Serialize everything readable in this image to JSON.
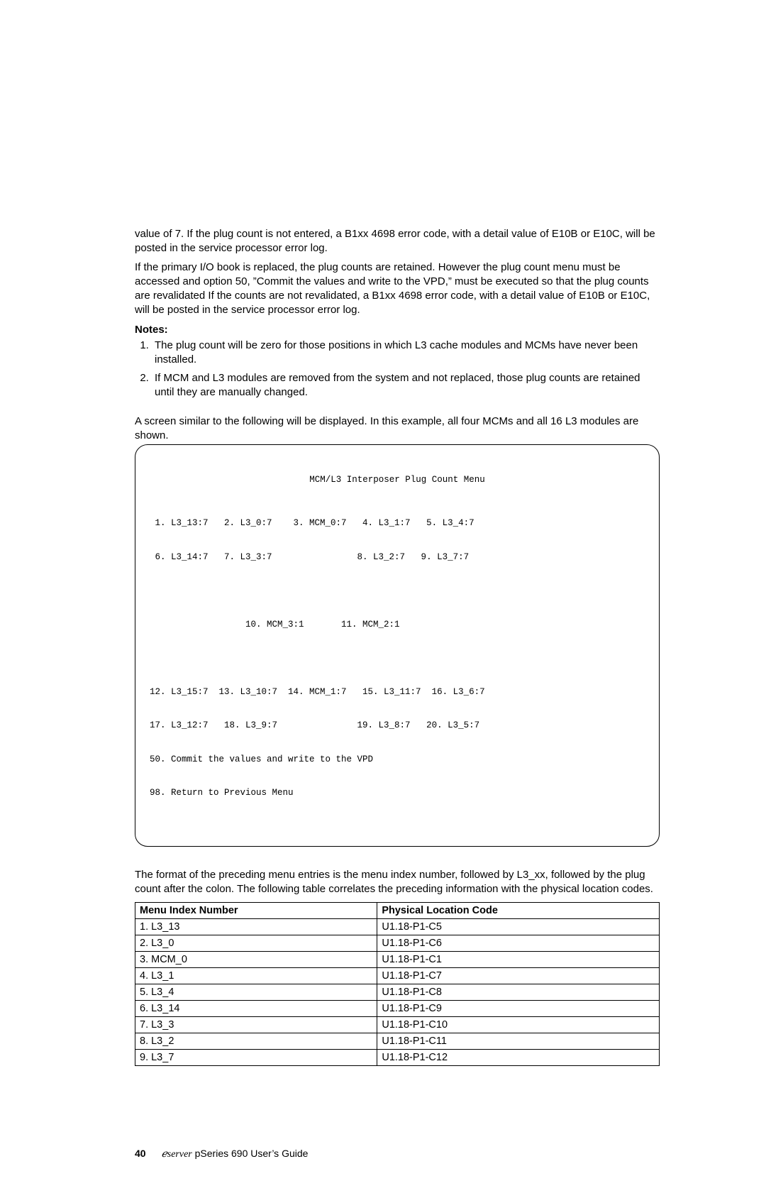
{
  "para1": "value of 7. If the plug count is not entered, a B1xx 4698 error code, with a detail value of E10B or E10C, will be posted in the service processor error log.",
  "para2": "If the primary I/O book is replaced, the plug counts are retained. However the plug count menu must be accessed and option 50, ”Commit the values and write to the VPD,” must be executed so that the plug counts are revalidated If the counts are not revalidated, a B1xx 4698 error code, with a detail value of E10B or E10C, will be posted in the service processor error log.",
  "notes_heading": "Notes:",
  "note1": "The plug count will be zero for those positions in which L3 cache modules and MCMs have never been installed.",
  "note2": "If MCM and L3 modules are removed from the system and not replaced, those plug counts are retained until they are manually changed.",
  "intro_screen": "A screen similar to the following will be displayed. In this example, all four MCMs and all 16 L3 modules are shown.",
  "screen": {
    "title": "MCM/L3 Interposer Plug Count Menu",
    "row1": " 1. L3_13:7   2. L3_0:7    3. MCM_0:7   4. L3_1:7   5. L3_4:7",
    "row2": " 6. L3_14:7   7. L3_3:7                8. L3_2:7   9. L3_7:7",
    "row3": "                  10. MCM_3:1       11. MCM_2:1",
    "row4": "12. L3_15:7  13. L3_10:7  14. MCM_1:7   15. L3_11:7  16. L3_6:7",
    "row5": "17. L3_12:7   18. L3_9:7               19. L3_8:7   20. L3_5:7",
    "row6": "50. Commit the values and write to the VPD",
    "row7": "98. Return to Previous Menu"
  },
  "para_after_screen": "The format of the preceding menu entries is the menu index number, followed by L3_xx, followed by the plug count after the colon. The following table correlates the preceding information with the physical location codes.",
  "table": {
    "h1": "Menu Index Number",
    "h2": "Physical Location Code",
    "rows": [
      {
        "c1": "1. L3_13",
        "c2": "U1.18-P1-C5"
      },
      {
        "c1": "2. L3_0",
        "c2": "U1.18-P1-C6"
      },
      {
        "c1": "3. MCM_0",
        "c2": "U1.18-P1-C1"
      },
      {
        "c1": "4. L3_1",
        "c2": "U1.18-P1-C7"
      },
      {
        "c1": "5. L3_4",
        "c2": "U1.18-P1-C8"
      },
      {
        "c1": "6. L3_14",
        "c2": "U1.18-P1-C9"
      },
      {
        "c1": "7. L3_3",
        "c2": "U1.18-P1-C10"
      },
      {
        "c1": "8. L3_2",
        "c2": "U1.18-P1-C11"
      },
      {
        "c1": "9. L3_7",
        "c2": "U1.18-P1-C12"
      }
    ]
  },
  "footer": {
    "page": "40",
    "brand": "ℯserver",
    "title": " pSeries 690 User’s Guide"
  }
}
